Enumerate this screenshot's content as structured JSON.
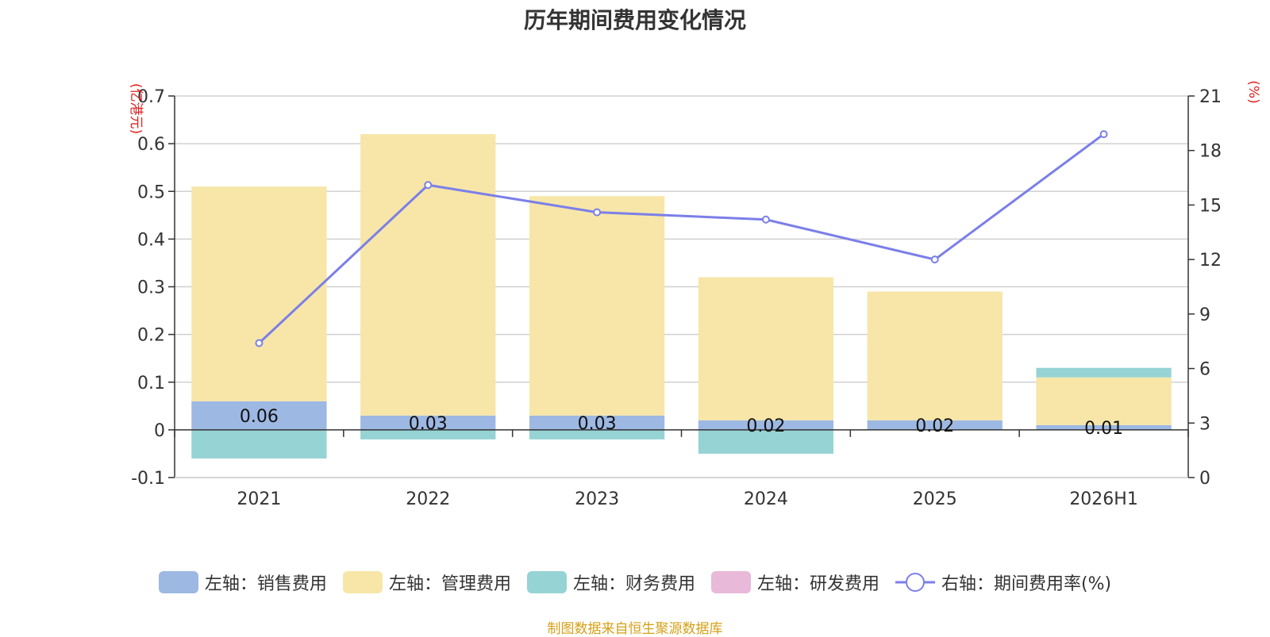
{
  "chart_data": {
    "type": "bar",
    "title": "历年期间费用变化情况",
    "categories": [
      "2021",
      "2022",
      "2023",
      "2024",
      "2025",
      "2026H1"
    ],
    "left_axis": {
      "unit": "(亿港元)",
      "ylim": [
        -0.1,
        0.7
      ],
      "ticks": [
        "0.7",
        "0.6",
        "0.5",
        "0.4",
        "0.3",
        "0.2",
        "0.1",
        "0",
        "-0.1"
      ]
    },
    "right_axis": {
      "unit": "(%)",
      "ylim": [
        0,
        21
      ],
      "ticks": [
        "21",
        "18",
        "15",
        "12",
        "9",
        "6",
        "3",
        "0"
      ]
    },
    "series": [
      {
        "name": "左轴：销售费用",
        "type": "bar",
        "axis": "left",
        "color": "#9db8e3",
        "values": [
          0.06,
          0.03,
          0.03,
          0.02,
          0.02,
          0.01
        ],
        "labels": [
          "0.06",
          "0.03",
          "0.03",
          "0.02",
          "0.02",
          "0.01"
        ]
      },
      {
        "name": "左轴：管理费用",
        "type": "bar",
        "axis": "left",
        "color": "#f7e6a8",
        "values": [
          0.45,
          0.59,
          0.46,
          0.3,
          0.27,
          0.1
        ]
      },
      {
        "name": "左轴：财务费用",
        "type": "bar",
        "axis": "left",
        "color": "#96d3d4",
        "values": [
          -0.06,
          -0.02,
          -0.02,
          -0.05,
          0.0,
          0.02
        ]
      },
      {
        "name": "左轴：研发费用",
        "type": "bar",
        "axis": "left",
        "color": "#e8b9d9",
        "values": [
          0,
          0,
          0,
          0,
          0,
          0
        ]
      },
      {
        "name": "右轴：期间费用率(%)",
        "type": "line",
        "axis": "right",
        "color": "#7b7fe8",
        "values": [
          7.4,
          16.1,
          14.6,
          14.2,
          12.0,
          18.9
        ]
      }
    ],
    "grid": true,
    "legend": "bottom"
  },
  "source_note": "制图数据来自恒生聚源数据库"
}
